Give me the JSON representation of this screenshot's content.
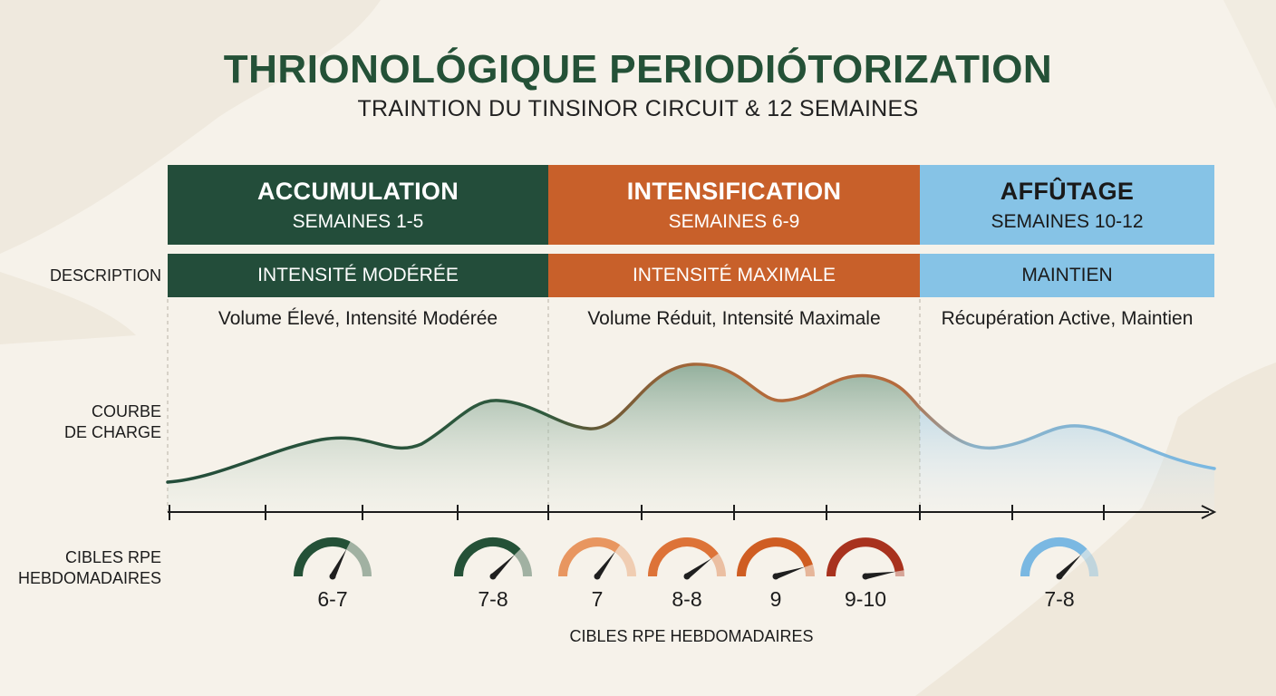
{
  "header": {
    "title": "THRIONOLÓGIQUE PERIODIÓTORIZATION",
    "subtitle": "TRAINTION DU TINSINOR CIRCUIT & 12 SEMAINES"
  },
  "row_labels": {
    "description": "DESCRIPTION",
    "curve_line1": "COURBE",
    "curve_line2": "DE CHARGE",
    "rpe_line1": "CIBLES RPE",
    "rpe_line2": "HEBDOMADAIRES"
  },
  "phases": [
    {
      "name": "ACCUMULATION",
      "weeks": "SEMAINES 1-5",
      "bar_label": "INTENSITÉ MODÉRÉE",
      "detail": "Volume Élevé, Intensité Modérée",
      "color": "#234d3a",
      "text_color": "#ffffff"
    },
    {
      "name": "INTENSIFICATION",
      "weeks": "SEMAINES 6-9",
      "bar_label": "INTENSITÉ MAXIMALE",
      "detail": "Volume Réduit, Intensité Maximale",
      "color": "#c8602a",
      "text_color": "#ffffff"
    },
    {
      "name": "AFFÛTAGE",
      "weeks": "SEMAINES 10-12",
      "bar_label": "MAINTIEN",
      "detail": "Récupération Active, Maintien",
      "color": "#86c3e6",
      "text_color": "#1a1a1a"
    }
  ],
  "gauges": [
    {
      "label": "6-7",
      "color": "#245137",
      "level": 0.65
    },
    {
      "label": "7-8",
      "color": "#245137",
      "level": 0.75
    },
    {
      "label": "7",
      "color": "#e89660",
      "level": 0.7
    },
    {
      "label": "8-8",
      "color": "#dd7338",
      "level": 0.8
    },
    {
      "label": "9",
      "color": "#cf5d22",
      "level": 0.9
    },
    {
      "label": "9-10",
      "color": "#a8321e",
      "level": 0.95
    },
    {
      "label": "7-8",
      "color": "#7ab8e2",
      "level": 0.75
    }
  ],
  "bottom_caption": "CIBLES RPE HEBDOMADAIRES",
  "colors": {
    "green": "#234d3a",
    "orange": "#c8602a",
    "blue": "#86c3e6",
    "background": "#f6f2ea"
  }
}
